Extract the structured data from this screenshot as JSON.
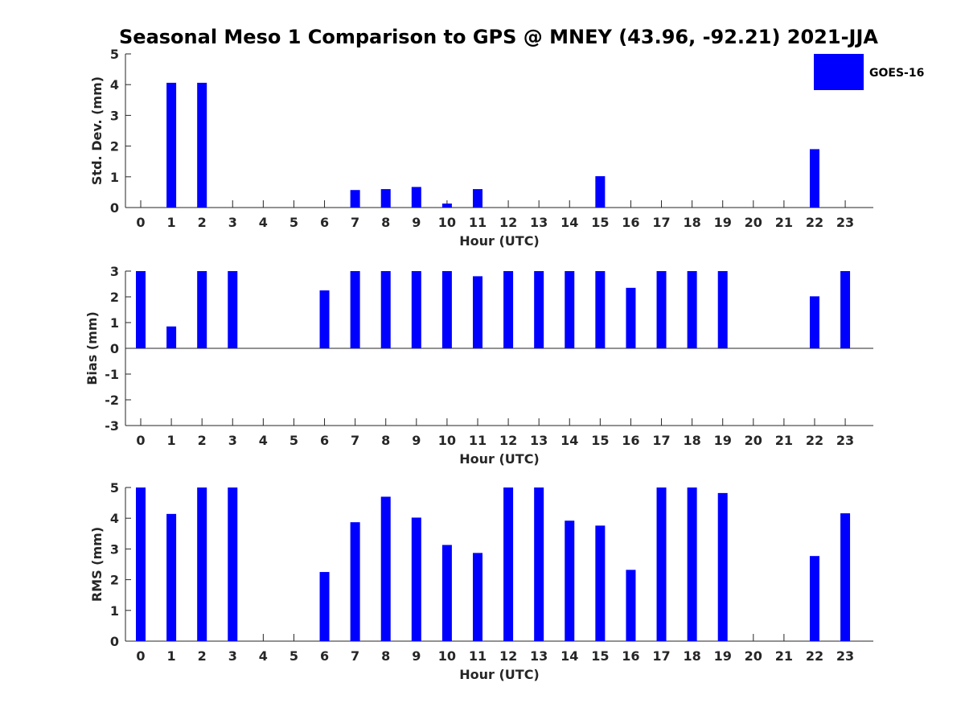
{
  "title": "Seasonal Meso 1 Comparison to GPS @ MNEY (43.96, -92.21) 2021-JJA",
  "legend": {
    "label": "GOES-16",
    "color": "#0000ff"
  },
  "bar_color": "#0000ff",
  "chart_data": [
    {
      "type": "bar",
      "ylabel": "Std. Dev. (mm)",
      "xlabel": "Hour (UTC)",
      "categories": [
        "0",
        "1",
        "2",
        "3",
        "4",
        "5",
        "6",
        "7",
        "8",
        "9",
        "10",
        "11",
        "12",
        "13",
        "14",
        "15",
        "16",
        "17",
        "18",
        "19",
        "20",
        "21",
        "22",
        "23"
      ],
      "ylim": [
        0,
        5
      ],
      "yticks": [
        "0",
        "1",
        "2",
        "3",
        "4",
        "5"
      ],
      "series": [
        {
          "name": "GOES-16",
          "values": [
            null,
            4.06,
            4.06,
            null,
            null,
            null,
            null,
            0.57,
            0.6,
            0.67,
            0.13,
            0.6,
            null,
            null,
            null,
            1.02,
            null,
            null,
            null,
            null,
            null,
            null,
            1.9,
            null
          ]
        }
      ]
    },
    {
      "type": "bar",
      "ylabel": "Bias (mm)",
      "xlabel": "Hour (UTC)",
      "categories": [
        "0",
        "1",
        "2",
        "3",
        "4",
        "5",
        "6",
        "7",
        "8",
        "9",
        "10",
        "11",
        "12",
        "13",
        "14",
        "15",
        "16",
        "17",
        "18",
        "19",
        "20",
        "21",
        "22",
        "23"
      ],
      "ylim": [
        -3,
        3
      ],
      "yticks": [
        "-3",
        "-2",
        "-1",
        "0",
        "1",
        "2",
        "3"
      ],
      "series": [
        {
          "name": "GOES-16",
          "values": [
            3.0,
            0.85,
            3.0,
            3.0,
            null,
            null,
            2.25,
            3.0,
            3.0,
            3.0,
            3.0,
            2.8,
            3.0,
            3.0,
            3.0,
            3.0,
            2.35,
            3.0,
            3.0,
            3.0,
            null,
            null,
            2.02,
            3.0
          ]
        }
      ]
    },
    {
      "type": "bar",
      "ylabel": "RMS (mm)",
      "xlabel": "Hour (UTC)",
      "categories": [
        "0",
        "1",
        "2",
        "3",
        "4",
        "5",
        "6",
        "7",
        "8",
        "9",
        "10",
        "11",
        "12",
        "13",
        "14",
        "15",
        "16",
        "17",
        "18",
        "19",
        "20",
        "21",
        "22",
        "23"
      ],
      "ylim": [
        0,
        5
      ],
      "yticks": [
        "0",
        "1",
        "2",
        "3",
        "4",
        "5"
      ],
      "series": [
        {
          "name": "GOES-16",
          "values": [
            5.0,
            4.14,
            5.0,
            5.0,
            null,
            null,
            2.25,
            3.87,
            4.7,
            4.02,
            3.13,
            2.87,
            5.0,
            5.0,
            3.92,
            3.76,
            2.32,
            5.0,
            5.0,
            4.82,
            null,
            null,
            2.77,
            4.16
          ]
        }
      ]
    }
  ]
}
